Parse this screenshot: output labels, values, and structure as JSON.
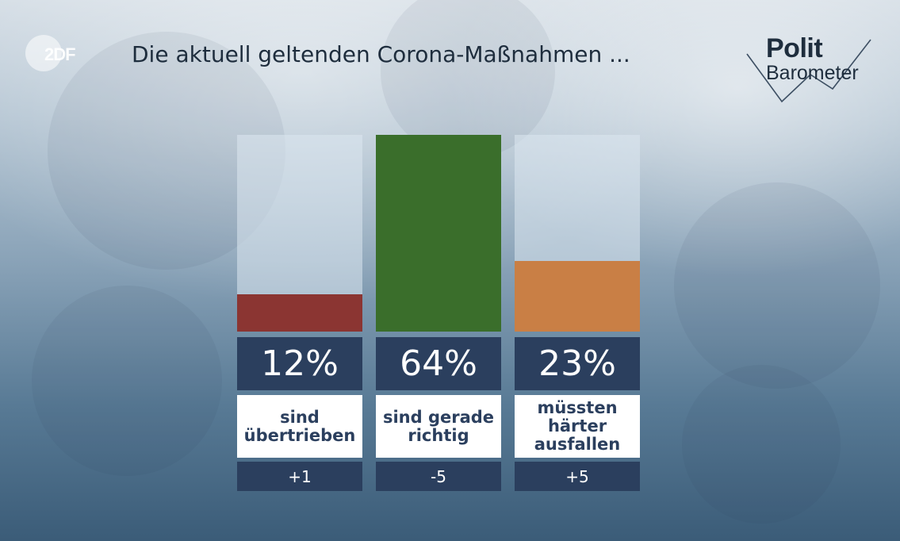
{
  "header": {
    "channel_logo": "2DF",
    "title": "Die aktuell geltenden Corona-Maßnahmen ...",
    "brand_top": "Polit",
    "brand_bottom": "Barometer"
  },
  "chart_data": {
    "type": "bar",
    "title": "Die aktuell geltenden Corona-Maßnahmen ...",
    "ylim": [
      0,
      64
    ],
    "grid": false,
    "categories": [
      "sind übertrieben",
      "sind gerade richtig",
      "müssten härter ausfallen"
    ],
    "bars": [
      {
        "value": 12,
        "label": "12%",
        "category_lines": [
          "sind",
          "übertrieben"
        ],
        "change": "+1",
        "color": "#8b3532"
      },
      {
        "value": 64,
        "label": "64%",
        "category_lines": [
          "sind gerade",
          "richtig"
        ],
        "change": "-5",
        "color": "#3a6e2b"
      },
      {
        "value": 23,
        "label": "23%",
        "category_lines": [
          "müssten",
          "härter",
          "ausfallen"
        ],
        "change": "+5",
        "color": "#c97f45"
      }
    ]
  }
}
